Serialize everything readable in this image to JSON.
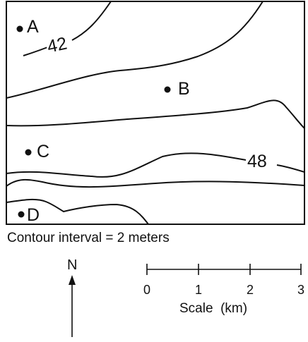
{
  "points": [
    {
      "id": "A",
      "label": "A"
    },
    {
      "id": "B",
      "label": "B"
    },
    {
      "id": "C",
      "label": "C"
    },
    {
      "id": "D",
      "label": "D"
    }
  ],
  "contours": {
    "label_42": "42",
    "label_48": "48"
  },
  "contour_interval_text": "Contour interval = 2 meters",
  "north_label": "N",
  "scale": {
    "ticks": [
      "0",
      "1",
      "2",
      "3"
    ],
    "title": "Scale  (km)"
  },
  "colors": {
    "ink": "#111111",
    "background": "#ffffff"
  }
}
